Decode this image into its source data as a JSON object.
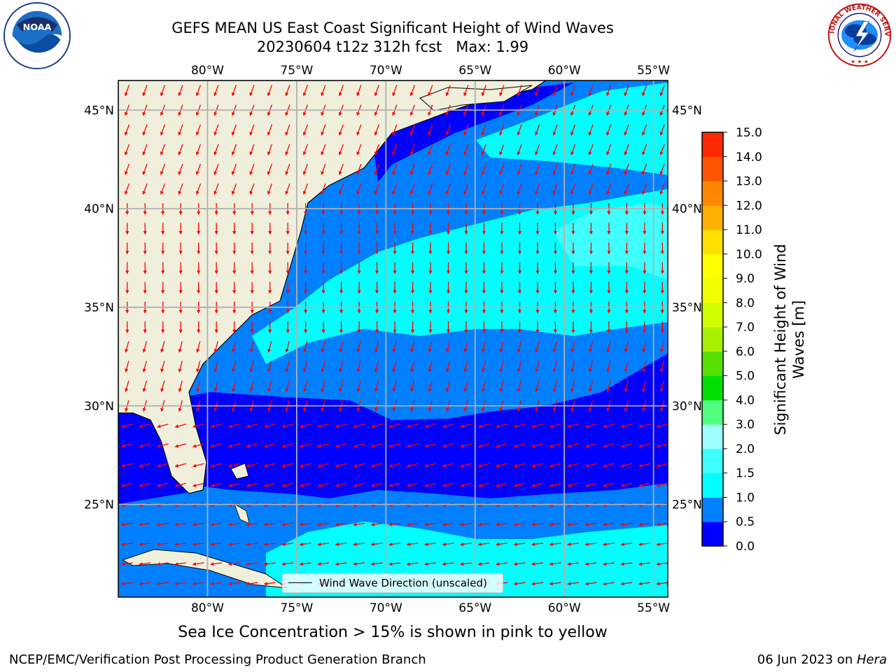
{
  "title": {
    "line1": "GEFS MEAN US East Coast Significant Height of Wind Waves",
    "line2": "20230604 t12z 312h fcst   Max: 1.99"
  },
  "logos": {
    "left": "noaa-logo",
    "right": "nws-logo",
    "left_text": "NOAA",
    "right_text": "NATIONAL WEATHER SERVICE"
  },
  "map": {
    "projection": "plate-carree",
    "lon_range": [
      -85,
      -54.2
    ],
    "lat_range": [
      20.3,
      46.5
    ],
    "lon_ticks": [
      -80,
      -75,
      -70,
      -65,
      -60,
      -55
    ],
    "lon_labels": [
      "80°W",
      "75°W",
      "70°W",
      "65°W",
      "60°W",
      "55°W"
    ],
    "lat_ticks": [
      25,
      30,
      35,
      40,
      45
    ],
    "lat_labels": [
      "25°N",
      "30°N",
      "35°N",
      "40°N",
      "45°N"
    ],
    "grid": true,
    "land_color": "#efefdc",
    "arrow_color": "#ff0000"
  },
  "colorbar": {
    "label": "Significant Height of Wind Waves [m]",
    "levels": [
      0.0,
      0.5,
      1.0,
      1.5,
      2.0,
      3.0,
      4.0,
      5.0,
      6.0,
      7.0,
      8.0,
      9.0,
      10.0,
      11.0,
      12.0,
      13.0,
      14.0,
      15.0
    ],
    "tick_labels": [
      "0.0",
      "0.5",
      "1.0",
      "1.5",
      "2.0",
      "3.0",
      "4.0",
      "5.0",
      "6.0",
      "7.0",
      "8.0",
      "9.0",
      "10.0",
      "11.0",
      "12.0",
      "13.0",
      "14.0",
      "15.0"
    ],
    "colors": [
      "#0000ff",
      "#0080ff",
      "#00ffff",
      "#40ffff",
      "#a0ffff",
      "#50ff80",
      "#00e000",
      "#58e000",
      "#a8f000",
      "#d0ff00",
      "#f0ff00",
      "#ffff00",
      "#ffe000",
      "#ffb000",
      "#ff8800",
      "#ff5500",
      "#ff2a00"
    ]
  },
  "legend": {
    "label": "Wind Wave Direction (unscaled)"
  },
  "footer": {
    "ice_note": "Sea Ice Concentration > 15% is shown in pink to yellow",
    "credit": "NCEP/EMC/Verification Post Processing Product Generation Branch",
    "date_prefix": "06 Jun 2023 on ",
    "machine": "Hera"
  }
}
